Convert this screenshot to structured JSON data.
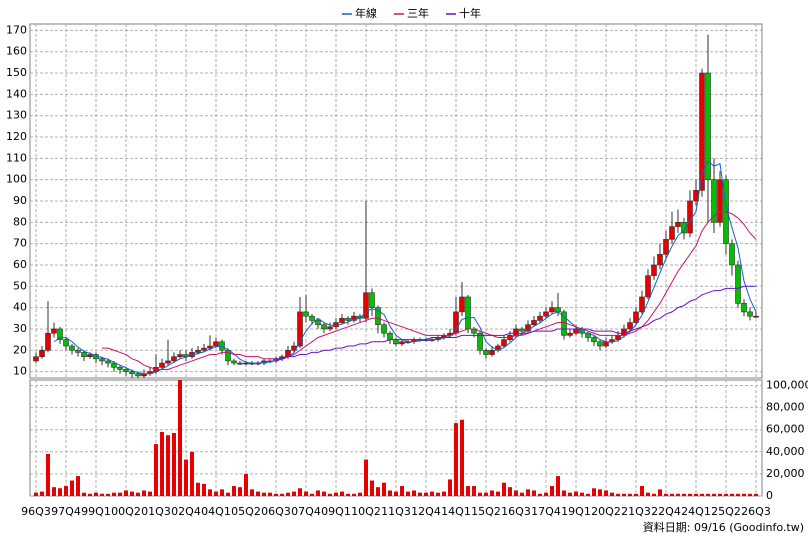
{
  "chart_data": {
    "type": "candlestick",
    "categories": [
      "96Q3",
      null,
      null,
      null,
      null,
      "97Q4",
      null,
      null,
      null,
      null,
      "99Q1",
      null,
      null,
      null,
      null,
      "00Q2",
      null,
      null,
      null,
      null,
      "01Q3",
      null,
      null,
      null,
      null,
      "02Q4",
      null,
      null,
      null,
      null,
      "04Q1",
      null,
      null,
      null,
      null,
      "05Q2",
      null,
      null,
      null,
      null,
      "06Q3",
      null,
      null,
      null,
      null,
      "07Q4",
      null,
      null,
      null,
      null,
      "09Q1",
      null,
      null,
      null,
      null,
      "10Q2",
      null,
      null,
      null,
      null,
      "11Q3",
      null,
      null,
      null,
      null,
      "12Q4",
      null,
      null,
      null,
      null,
      "14Q1",
      null,
      null,
      null,
      null,
      "15Q2",
      null,
      null,
      null,
      null,
      "16Q3",
      null,
      null,
      null,
      null,
      "17Q4",
      null,
      null,
      null,
      null,
      "19Q1",
      null,
      null,
      null,
      null,
      "20Q2",
      null,
      null,
      null,
      null,
      "21Q3",
      null,
      null,
      null,
      null,
      "22Q4",
      null,
      null,
      null,
      null,
      "24Q1",
      null,
      null,
      null,
      null,
      "25Q2",
      null,
      null,
      null,
      null,
      "26Q3"
    ],
    "open": [
      15,
      17,
      20,
      28,
      30,
      25,
      22,
      20,
      19,
      17,
      18,
      16,
      15,
      14,
      12,
      11,
      10,
      9,
      8,
      9,
      10,
      12,
      14,
      15,
      17,
      18,
      17,
      19,
      20,
      21,
      22,
      24,
      20,
      15,
      14,
      14,
      14,
      14,
      14,
      15,
      15,
      16,
      17,
      20,
      22,
      38,
      36,
      34,
      32,
      30,
      31,
      33,
      35,
      34,
      36,
      35,
      47,
      40,
      32,
      28,
      25,
      23,
      24,
      24,
      25,
      25,
      25,
      25,
      26,
      27,
      28,
      38,
      45,
      30,
      28,
      20,
      18,
      20,
      22,
      25,
      27,
      30,
      29,
      32,
      34,
      36,
      38,
      40,
      38,
      27,
      28,
      30,
      28,
      26,
      24,
      22,
      24,
      25,
      27,
      30,
      33,
      38,
      45,
      55,
      60,
      65,
      72,
      78,
      80,
      75,
      90,
      95,
      150,
      100,
      80,
      100,
      70,
      60,
      42,
      38,
      36
    ],
    "high": [
      19,
      22,
      43,
      33,
      31,
      26,
      23,
      21,
      20,
      19,
      19,
      17,
      16,
      15,
      13,
      12,
      11,
      10,
      11,
      12,
      18,
      16,
      25,
      19,
      20,
      20,
      21,
      22,
      23,
      27,
      26,
      25,
      21,
      16,
      15,
      15,
      15,
      15,
      16,
      16,
      17,
      18,
      22,
      24,
      45,
      46,
      37,
      35,
      33,
      33,
      35,
      37,
      36,
      38,
      37,
      90,
      49,
      41,
      33,
      29,
      26,
      25,
      25,
      26,
      26,
      26,
      26,
      27,
      28,
      30,
      45,
      52,
      46,
      31,
      29,
      21,
      22,
      23,
      27,
      29,
      32,
      31,
      34,
      36,
      38,
      40,
      43,
      47,
      39,
      30,
      32,
      31,
      29,
      27,
      25,
      26,
      27,
      29,
      32,
      35,
      40,
      48,
      58,
      64,
      70,
      76,
      85,
      86,
      82,
      95,
      100,
      152,
      168,
      110,
      104,
      102,
      72,
      62,
      44,
      40,
      38
    ],
    "low": [
      14,
      16,
      19,
      26,
      23,
      20,
      18,
      17,
      15,
      16,
      14,
      13,
      12,
      10,
      9,
      8,
      7,
      7,
      7,
      8,
      9,
      11,
      13,
      14,
      16,
      15,
      16,
      18,
      19,
      20,
      21,
      18,
      13,
      13,
      13,
      13,
      13,
      13,
      13,
      14,
      14,
      15,
      16,
      19,
      21,
      33,
      32,
      30,
      28,
      29,
      30,
      32,
      32,
      33,
      33,
      33,
      36,
      28,
      26,
      23,
      22,
      22,
      23,
      23,
      24,
      24,
      24,
      24,
      25,
      26,
      27,
      36,
      28,
      26,
      18,
      16,
      17,
      19,
      21,
      24,
      26,
      27,
      28,
      31,
      33,
      35,
      37,
      36,
      25,
      26,
      27,
      26,
      24,
      22,
      20,
      21,
      23,
      24,
      26,
      29,
      32,
      37,
      44,
      53,
      58,
      63,
      70,
      75,
      72,
      73,
      88,
      92,
      80,
      75,
      78,
      65,
      55,
      40,
      36,
      34,
      35
    ],
    "close": [
      17,
      20,
      28,
      30,
      25,
      22,
      20,
      19,
      17,
      18,
      16,
      15,
      14,
      12,
      11,
      10,
      9,
      8,
      9,
      10,
      12,
      14,
      15,
      17,
      18,
      17,
      19,
      20,
      21,
      22,
      24,
      20,
      15,
      14,
      14,
      14,
      14,
      14,
      15,
      15,
      16,
      17,
      20,
      22,
      38,
      36,
      34,
      32,
      30,
      31,
      33,
      35,
      34,
      36,
      35,
      47,
      40,
      32,
      28,
      25,
      23,
      24,
      24,
      25,
      25,
      25,
      25,
      26,
      27,
      28,
      38,
      45,
      30,
      28,
      20,
      18,
      20,
      22,
      25,
      27,
      30,
      29,
      32,
      34,
      36,
      38,
      40,
      38,
      27,
      28,
      30,
      28,
      26,
      24,
      22,
      24,
      25,
      27,
      30,
      33,
      38,
      45,
      55,
      60,
      65,
      72,
      78,
      80,
      75,
      90,
      95,
      150,
      100,
      80,
      100,
      70,
      60,
      42,
      38,
      36,
      36
    ],
    "up_color": "#e60000",
    "down_color": "#00c000",
    "ylim": [
      7,
      173
    ],
    "yticks": [
      10,
      20,
      30,
      40,
      50,
      60,
      70,
      80,
      90,
      100,
      110,
      120,
      130,
      140,
      150,
      160,
      170
    ],
    "grid": true,
    "legend": "top",
    "series": [
      {
        "name": "年線",
        "color": "#1060d0",
        "values": [
          null,
          null,
          null,
          24,
          25.8,
          26,
          24,
          21.5,
          19.5,
          18.5,
          17.5,
          16.5,
          15.8,
          14.3,
          13,
          11.8,
          10.5,
          9.5,
          9,
          9,
          9.8,
          11.3,
          12.8,
          14.5,
          16,
          16.8,
          17.8,
          18.5,
          19.3,
          20.5,
          21.8,
          21.8,
          20.3,
          18.3,
          15.8,
          14.3,
          14,
          14,
          14.3,
          14.5,
          15.3,
          15.8,
          17,
          18.8,
          24.3,
          29,
          32.5,
          35,
          33,
          31.8,
          31.5,
          32.3,
          33.3,
          34.5,
          35,
          38,
          39.5,
          38.5,
          36.8,
          31.3,
          27,
          25,
          24,
          24,
          24.5,
          24.8,
          25,
          25.3,
          25.8,
          26.5,
          29.8,
          34.5,
          35.3,
          35.3,
          30.8,
          24,
          21.5,
          20,
          21.3,
          23.5,
          26,
          27.8,
          29.5,
          31.3,
          32.8,
          35,
          37,
          38,
          35.8,
          33.3,
          30.8,
          28.3,
          28,
          27,
          25,
          24,
          23.8,
          24.5,
          26.5,
          28.8,
          32,
          36.5,
          42.8,
          49.5,
          56.3,
          63,
          68.8,
          73.8,
          76.3,
          80.8,
          85,
          102.5,
          108.8,
          106.3,
          107.5,
          87.5,
          77.5,
          68,
          52.5,
          44,
          38
        ]
      },
      {
        "name": "三年",
        "color": "#d0106a",
        "values": [
          null,
          null,
          null,
          null,
          null,
          null,
          null,
          null,
          null,
          null,
          null,
          21,
          21,
          20,
          19,
          18,
          16,
          15,
          13,
          12,
          11,
          11,
          11,
          12,
          13,
          14,
          15,
          16,
          17,
          18,
          18,
          19,
          19,
          18,
          18,
          17,
          17,
          17,
          16,
          16,
          16,
          16,
          17,
          18,
          20,
          22,
          24,
          26,
          27,
          28,
          29,
          30,
          31,
          32,
          33,
          34,
          35,
          35,
          34,
          33,
          32,
          31,
          30,
          29,
          28,
          27,
          27,
          27,
          27,
          27,
          28,
          29,
          30,
          30,
          29,
          28,
          27,
          26,
          26,
          26,
          27,
          27,
          28,
          29,
          30,
          31,
          32,
          33,
          33,
          32,
          31,
          30,
          29,
          28,
          27,
          27,
          27,
          27,
          27,
          28,
          29,
          31,
          34,
          38,
          42,
          47,
          52,
          57,
          61,
          65,
          69,
          76,
          80,
          83,
          85,
          85,
          84,
          82,
          79,
          75,
          72
        ]
      },
      {
        "name": "十年",
        "color": "#6a10c8",
        "values": [
          null,
          null,
          null,
          null,
          null,
          null,
          null,
          null,
          null,
          null,
          null,
          null,
          null,
          null,
          null,
          null,
          null,
          null,
          null,
          null,
          null,
          null,
          null,
          null,
          null,
          null,
          null,
          null,
          null,
          null,
          null,
          null,
          null,
          null,
          null,
          null,
          null,
          null,
          null,
          null,
          16,
          16,
          17,
          17,
          18,
          18,
          19,
          19,
          20,
          20,
          21,
          21,
          22,
          22,
          23,
          23,
          24,
          24,
          24,
          25,
          25,
          25,
          25,
          25,
          25,
          25,
          26,
          26,
          26,
          26,
          26,
          27,
          27,
          27,
          27,
          27,
          27,
          27,
          27,
          28,
          28,
          28,
          28,
          29,
          29,
          29,
          29,
          30,
          30,
          30,
          30,
          30,
          30,
          29,
          29,
          29,
          29,
          28,
          28,
          29,
          30,
          31,
          32,
          34,
          35,
          37,
          38,
          40,
          41,
          43,
          44,
          46,
          47,
          48,
          48,
          49,
          49,
          49,
          50,
          50,
          50
        ]
      }
    ],
    "volume": {
      "color": "#e60000",
      "values": [
        3000,
        4000,
        38000,
        8000,
        7000,
        9000,
        14000,
        18000,
        3000,
        2000,
        3000,
        2000,
        2000,
        3000,
        3000,
        5000,
        4000,
        3000,
        5000,
        4000,
        47000,
        58000,
        55000,
        57000,
        105000,
        33000,
        40000,
        12000,
        11000,
        6000,
        4000,
        6000,
        3000,
        9000,
        8000,
        20000,
        6000,
        4000,
        3000,
        3000,
        2000,
        2000,
        3000,
        4000,
        7000,
        4000,
        2000,
        5000,
        4000,
        2000,
        3000,
        4000,
        2000,
        2000,
        3000,
        33000,
        14000,
        8000,
        12000,
        5000,
        4000,
        9000,
        4000,
        5000,
        3000,
        3000,
        4000,
        3000,
        4000,
        15000,
        66000,
        69000,
        9000,
        9000,
        3000,
        3000,
        5000,
        4000,
        12000,
        8000,
        5000,
        3000,
        6000,
        5000,
        2000,
        3000,
        9000,
        18000,
        5000,
        3000,
        4000,
        3000,
        2000,
        7000,
        6000,
        5000,
        3000,
        2000,
        2000,
        2000,
        2000,
        9000,
        3000,
        2000,
        6000,
        2000,
        2000,
        2000,
        2000,
        2000,
        2000,
        2000,
        2000,
        2000,
        2000,
        2000,
        2000,
        2000,
        2000,
        2000,
        2000
      ],
      "ylim": [
        0,
        105000
      ],
      "yticks": [
        0,
        {
          "value": 20000,
          "label": "20,000"
        },
        {
          "value": 40000,
          "label": "40,000"
        },
        {
          "value": 60000,
          "label": "60,000"
        },
        {
          "value": 80000,
          "label": "80,000"
        },
        {
          "value": 100000,
          "label": "100,000"
        }
      ]
    },
    "footer": "資料日期: 09/16  (Goodinfo.tw)"
  }
}
